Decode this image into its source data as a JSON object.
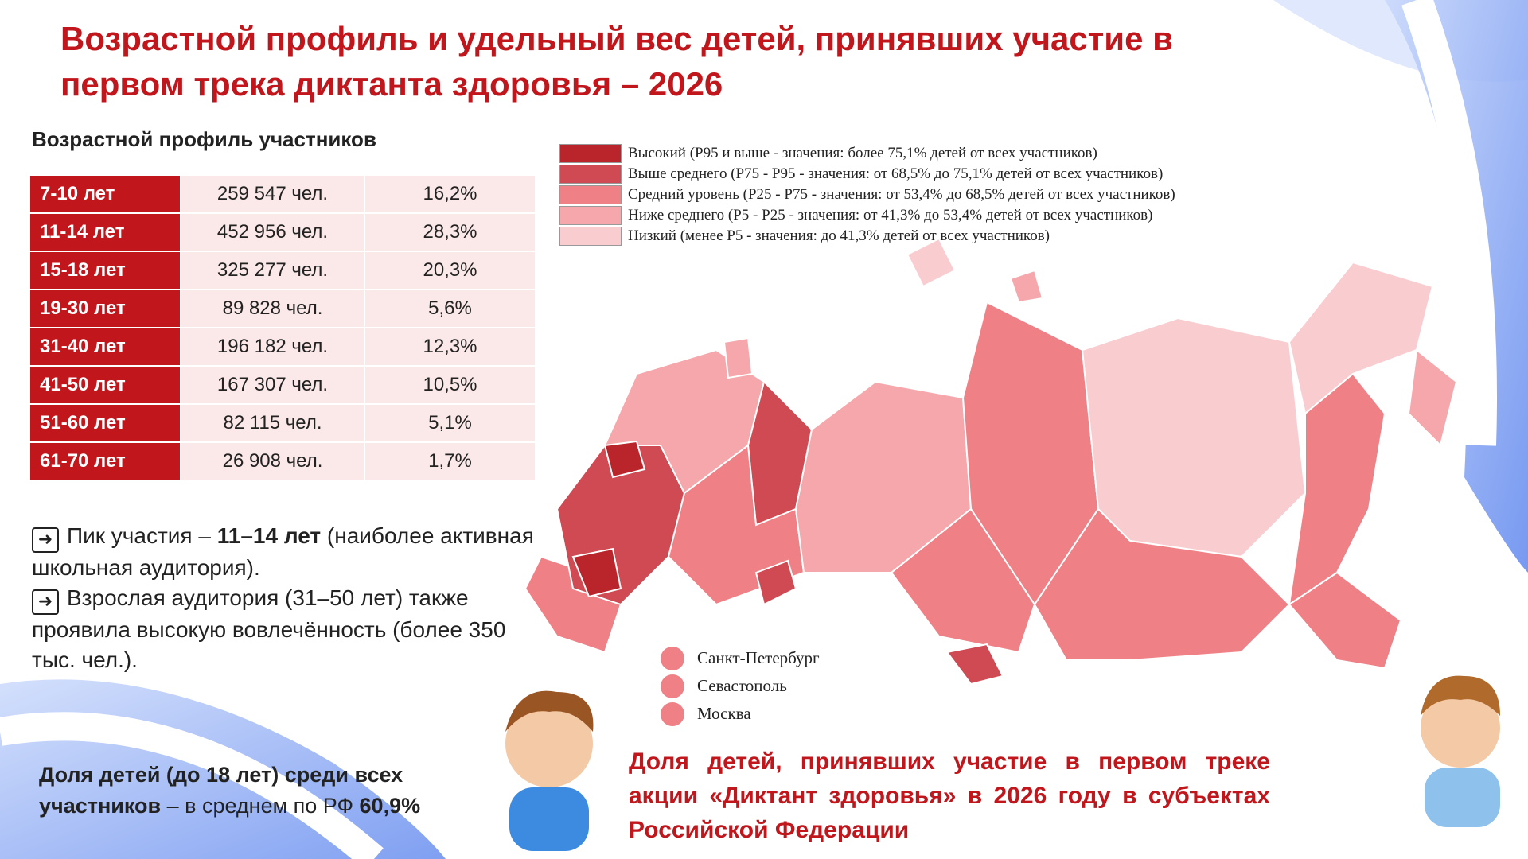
{
  "header": {
    "title": "Возрастной профиль и удельный вес детей, принявших участие в первом трека диктанта здоровья – 2026"
  },
  "age_profile": {
    "title": "Возрастной профиль участников",
    "rows": [
      [
        "7-10 лет",
        "259 547 чел.",
        "16,2%"
      ],
      [
        "11-14 лет",
        "452 956 чел.",
        "28,3%"
      ],
      [
        "15-18 лет",
        "325 277 чел.",
        "20,3%"
      ],
      [
        "19-30 лет",
        "89 828 чел.",
        "5,6%"
      ],
      [
        "31-40 лет",
        "196 182 чел.",
        "12,3%"
      ],
      [
        "41-50 лет",
        "167 307 чел.",
        "10,5%"
      ],
      [
        "51-60 лет",
        "82 115 чел.",
        "5,1%"
      ],
      [
        "61-70 лет",
        "26 908 чел.",
        "1,7%"
      ]
    ]
  },
  "notes": [
    [
      "Пик участия – ",
      "11–14 лет",
      " (наиболее активная школьная аудитория)."
    ],
    [
      "Взрослая аудитория (31–50 лет) также проявила высокую вовлечённость (более 350 тыс. чел.)."
    ]
  ],
  "summary": [
    "Доля детей (до 18 лет) среди всех участников",
    " – в среднем по РФ ",
    "60,9%"
  ],
  "legend": [
    {
      "label": "Высокий (P95 и выше - значения: более 75,1% детей от всех участников)",
      "color": "#b9252b"
    },
    {
      "label": "Выше среднего (P75 - P95 - значения: от 68,5% до 75,1% детей от всех участников)",
      "color": "#cf4a52"
    },
    {
      "label": "Средний уровень (P25 - P75 - значения: от 53,4% до 68,5% детей от всех участников)",
      "color": "#ef8086"
    },
    {
      "label": "Ниже среднего (P5 - P25 - значения: от 41,3% до 53,4% детей от всех участников)",
      "color": "#f5a7ab"
    },
    {
      "label": "Низкий (менее P5 - значения: до 41,3% детей от всех участников)",
      "color": "#f9cdd0"
    }
  ],
  "cities": [
    "Санкт-Петербург",
    "Севастополь",
    "Москва"
  ],
  "caption": "Доля детей, принявших участие в первом треке акции «Диктант здоровья» в 2026 году в субъектах Российской Федерации"
}
